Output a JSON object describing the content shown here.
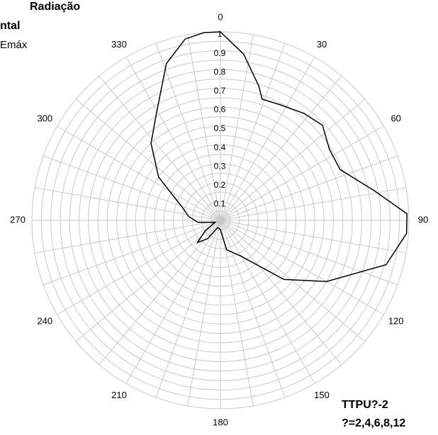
{
  "chart_data": {
    "type": "polar",
    "title_lines": [
      "Radiação",
      "ntal"
    ],
    "subtitle": "Emáx",
    "annotations": [
      "TTPU?-2",
      "?=2,4,6,8,12"
    ],
    "rlim": [
      0,
      1
    ],
    "rticks": [
      0.1,
      0.2,
      0.3,
      0.4,
      0.5,
      0.6,
      0.7,
      0.8,
      0.9,
      1
    ],
    "thetaticks": [
      0,
      30,
      60,
      90,
      120,
      150,
      180,
      210,
      240,
      270,
      300,
      330
    ],
    "theta_grid_step": 10,
    "grid": true,
    "series": [
      {
        "color": "#000000",
        "theta": [
          0,
          8,
          16,
          19,
          27,
          38,
          47,
          57,
          67,
          79,
          88,
          94,
          105,
          120,
          133,
          150,
          168,
          180,
          200,
          215,
          226,
          235,
          250,
          265,
          277,
          290,
          305,
          318,
          329,
          341,
          349,
          355
        ],
        "r": [
          1.0,
          0.89,
          0.74,
          0.68,
          0.69,
          0.72,
          0.74,
          0.69,
          0.69,
          0.83,
          0.99,
          0.99,
          0.91,
          0.65,
          0.46,
          0.22,
          0.16,
          0.05,
          0.04,
          0.12,
          0.17,
          0.1,
          0.03,
          0.12,
          0.17,
          0.22,
          0.4,
          0.55,
          0.66,
          0.88,
          0.98,
          1.0
        ]
      }
    ]
  }
}
